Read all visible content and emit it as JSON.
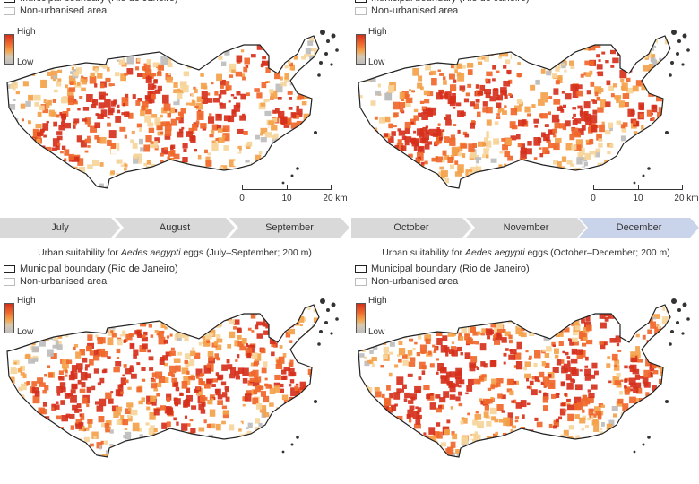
{
  "legend": {
    "boundary": "Municipal boundary (Rio de Janeiro)",
    "non_urban": "Non-urbanised area",
    "high": "High",
    "low": "Low"
  },
  "scalebar": {
    "t0": "0",
    "t1": "10",
    "t2": "20 km"
  },
  "months_left": [
    "July",
    "August",
    "September"
  ],
  "months_right": [
    "October",
    "November",
    "December"
  ],
  "highlight_month": "December",
  "captions": {
    "left_pre": "Urban suitability for ",
    "species": "Aedes aegypti",
    "left_post": " eggs (July–September; 200 m)",
    "right_pre": "Urban suitability for ",
    "right_post": " eggs (October–December; 200 m)"
  },
  "colors": {
    "high": "#d6301b",
    "mid": "#f4a24a",
    "low": "#bdbdbd",
    "chevron": "#d9d9d9",
    "chevron_highlight": "#c9d3ea"
  }
}
